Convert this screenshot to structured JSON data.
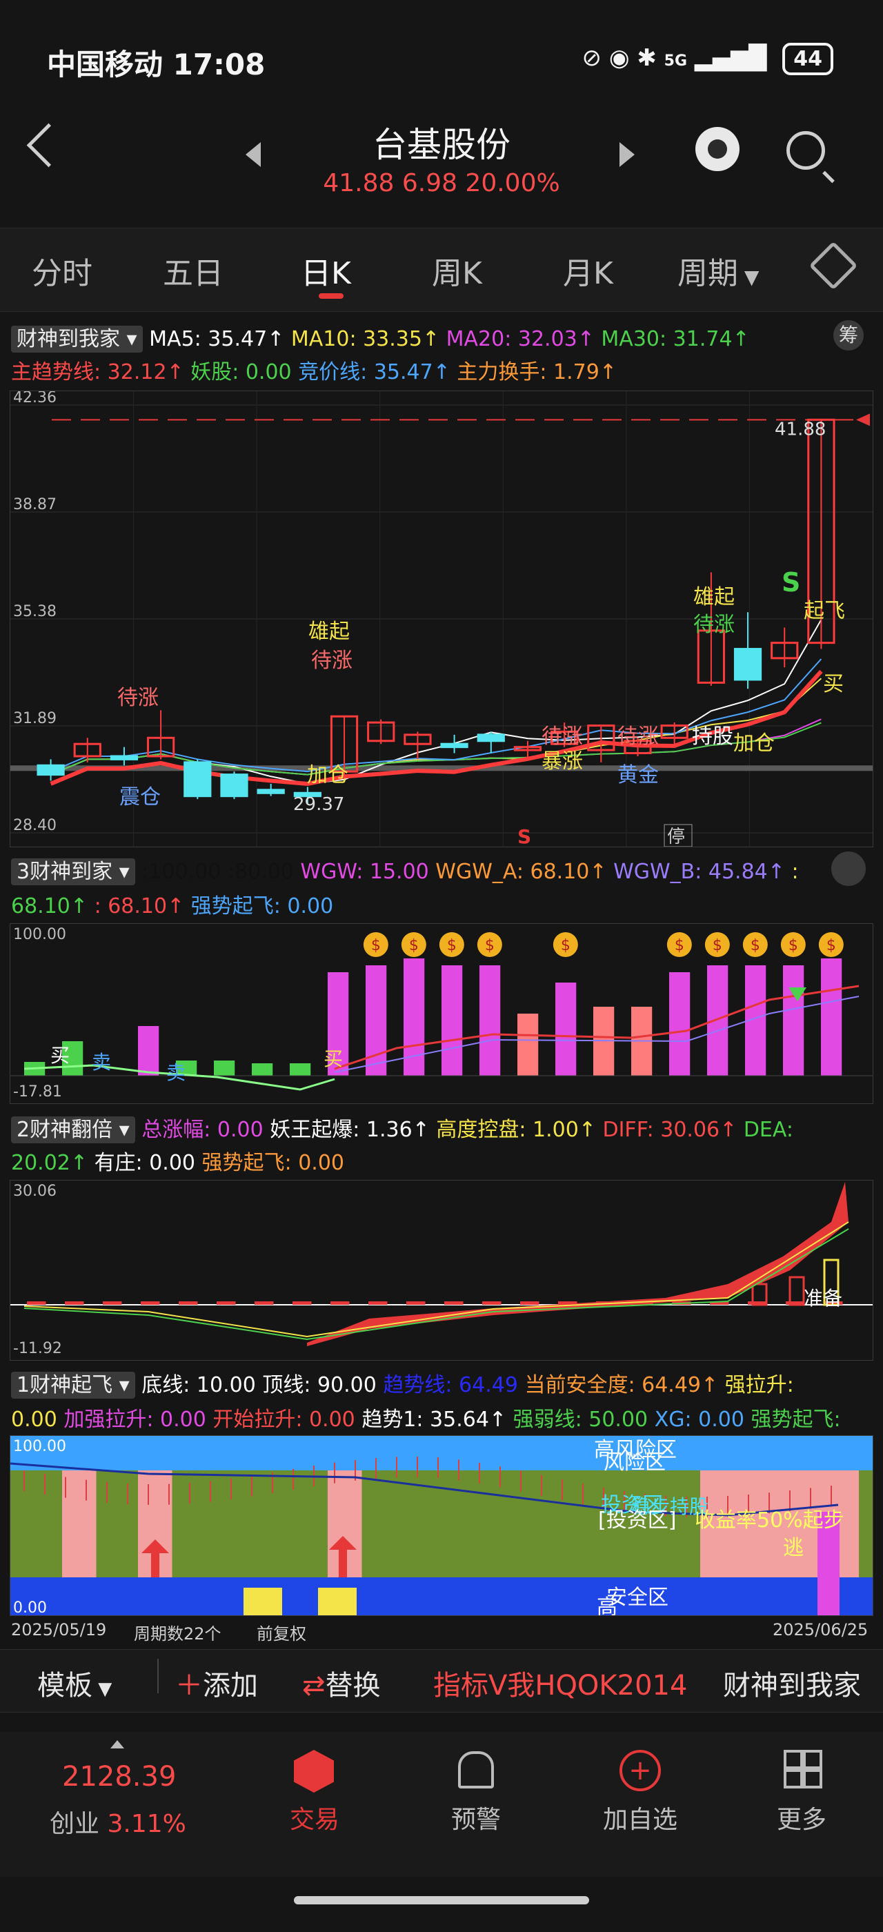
{
  "status": {
    "carrier_time": "中国移动 17:08",
    "network": "5G",
    "battery": "44"
  },
  "header": {
    "title": "台基股份",
    "quote": "41.88 6.98 20.00%"
  },
  "period_tabs": [
    {
      "label": "分时",
      "active": false
    },
    {
      "label": "五日",
      "active": false
    },
    {
      "label": "日K",
      "active": true
    },
    {
      "label": "周K",
      "active": false
    },
    {
      "label": "月K",
      "active": false
    },
    {
      "label": "周期",
      "active": false
    }
  ],
  "main_chart": {
    "indicator_name": "财神到我家",
    "chip_label": "筹",
    "ma_line": [
      {
        "text": "MA5: 35.47↑",
        "color": "#ffffff"
      },
      {
        "text": "MA10: 33.35↑",
        "color": "#f4e44a"
      },
      {
        "text": "MA20: 32.03↑",
        "color": "#e24be3"
      },
      {
        "text": "MA30: 31.74↑",
        "color": "#4cd14c"
      }
    ],
    "ind_line": [
      {
        "text": "主趋势线: 32.12↑",
        "color": "#ff4a4a"
      },
      {
        "text": "妖股: 0.00",
        "color": "#4cd14c"
      },
      {
        "text": "竞价线: 35.47↑",
        "color": "#4da6ff"
      },
      {
        "text": "主力换手: 1.79↑",
        "color": "#ff9a3a"
      }
    ],
    "y_labels": [
      "42.36",
      "38.87",
      "35.38",
      "31.89",
      "28.40"
    ],
    "high_label": "41.88",
    "low_label": "29.37",
    "annotations": {
      "a1": "待涨",
      "a2": "雄起",
      "a3": "待涨",
      "a4": "加仓",
      "a5": "震仓",
      "a6": "暴涨",
      "a7": "待涨",
      "a8": "待涨",
      "a9": "黄金",
      "a10": "持股",
      "a11": "加仓",
      "a12": "雄起",
      "a13": "待涨",
      "a14": "S",
      "a15": "起飞",
      "a16": "买",
      "a17": "S",
      "a18": "停"
    }
  },
  "chart_data": {
    "type": "candlestick",
    "series_ma": [
      "MA5",
      "MA10",
      "MA20",
      "MA30"
    ],
    "ylim": [
      28.4,
      42.36
    ],
    "x_start": "2025/05/19",
    "x_end": "2025/06/25",
    "candles": [
      {
        "o": 30.6,
        "c": 30.3,
        "h": 30.8,
        "l": 30.1
      },
      {
        "o": 30.9,
        "c": 31.3,
        "h": 31.5,
        "l": 30.7
      },
      {
        "o": 30.9,
        "c": 30.8,
        "h": 31.2,
        "l": 30.6
      },
      {
        "o": 30.9,
        "c": 31.5,
        "h": 32.4,
        "l": 30.8
      },
      {
        "o": 30.7,
        "c": 29.6,
        "h": 30.8,
        "l": 29.5
      },
      {
        "o": 30.3,
        "c": 29.6,
        "h": 30.4,
        "l": 29.5
      },
      {
        "o": 29.8,
        "c": 29.7,
        "h": 30.0,
        "l": 29.6
      },
      {
        "o": 29.7,
        "c": 29.6,
        "h": 29.9,
        "l": 29.37
      },
      {
        "o": 30.4,
        "c": 32.2,
        "h": 32.2,
        "l": 30.3
      },
      {
        "o": 31.4,
        "c": 32.0,
        "h": 32.1,
        "l": 31.3
      },
      {
        "o": 31.3,
        "c": 31.6,
        "h": 31.7,
        "l": 30.8
      },
      {
        "o": 31.3,
        "c": 31.2,
        "h": 31.6,
        "l": 31.0
      },
      {
        "o": 31.6,
        "c": 31.4,
        "h": 31.7,
        "l": 31.0
      },
      {
        "o": 31.1,
        "c": 31.2,
        "h": 31.4,
        "l": 30.8
      },
      {
        "o": 31.3,
        "c": 31.7,
        "h": 32.0,
        "l": 31.2
      },
      {
        "o": 31.1,
        "c": 31.9,
        "h": 31.9,
        "l": 30.7
      },
      {
        "o": 31.0,
        "c": 31.4,
        "h": 31.5,
        "l": 30.9
      },
      {
        "o": 31.5,
        "c": 31.9,
        "h": 32.0,
        "l": 31.2
      },
      {
        "o": 33.3,
        "c": 35.0,
        "h": 36.9,
        "l": 33.2
      },
      {
        "o": 34.4,
        "c": 33.4,
        "h": 35.6,
        "l": 33.1
      },
      {
        "o": 34.1,
        "c": 34.6,
        "h": 35.1,
        "l": 33.8
      },
      {
        "o": 34.6,
        "c": 41.88,
        "h": 41.88,
        "l": 34.4
      }
    ]
  },
  "panel2": {
    "name": "3财神到家",
    "head_line1": [
      {
        "text": ":100.00",
        "color": "#111111"
      },
      {
        "text": ":80.00",
        "color": "#111111"
      },
      {
        "text": "WGW: 15.00",
        "color": "#e24be3"
      },
      {
        "text": "WGW_A: 68.10↑",
        "color": "#ff9a3a"
      },
      {
        "text": "WGW_B: 45.84↑",
        "color": "#9a7dff"
      },
      {
        "text": ":",
        "color": "#f4e44a"
      }
    ],
    "head_line2": [
      {
        "text": "68.10↑",
        "color": "#4cd14c"
      },
      {
        "text": ": 68.10↑",
        "color": "#ff4a4a"
      },
      {
        "text": "强势起飞: 0.00",
        "color": "#4da6ff"
      }
    ],
    "y_top": "100.00",
    "y_bottom": "-17.81",
    "buy": "买",
    "sell": "卖",
    "sell2": "卖",
    "buy2": "买"
  },
  "panel3": {
    "name": "2财神翻倍",
    "head_line1": [
      {
        "text": "总涨幅: 0.00",
        "color": "#e24be3"
      },
      {
        "text": "妖王起爆: 1.36↑",
        "color": "#ffffff"
      },
      {
        "text": "高度控盘: 1.00↑",
        "color": "#f4e44a"
      },
      {
        "text": "DIFF: 30.06↑",
        "color": "#ff4a4a"
      },
      {
        "text": "DEA:",
        "color": "#4cd14c"
      }
    ],
    "head_line2": [
      {
        "text": "20.02↑",
        "color": "#4cd14c"
      },
      {
        "text": "有庄: 0.00",
        "color": "#ffffff"
      },
      {
        "text": "强势起飞: 0.00",
        "color": "#ff9a3a"
      }
    ],
    "y_top": "30.06",
    "y_bottom": "-11.92",
    "ready": "准备"
  },
  "panel4": {
    "name": "1财神起飞",
    "head_line1": [
      {
        "text": "底线: 10.00",
        "color": "#ffffff"
      },
      {
        "text": "顶线: 90.00",
        "color": "#ffffff"
      },
      {
        "text": "趋势线: 64.49",
        "color": "#2a2aff"
      },
      {
        "text": "当前安全度: 64.49↑",
        "color": "#ff9a3a"
      },
      {
        "text": "强拉升:",
        "color": "#f4e44a"
      }
    ],
    "head_line2": [
      {
        "text": "0.00",
        "color": "#f4e44a"
      },
      {
        "text": "加强拉升: 0.00",
        "color": "#e24be3"
      },
      {
        "text": "开始拉升: 0.00",
        "color": "#ff4a4a"
      },
      {
        "text": "趋势1: 35.64↑",
        "color": "#ffffff"
      },
      {
        "text": "强弱线: 50.00",
        "color": "#4cd14c"
      },
      {
        "text": "XG: 0.00",
        "color": "#4da6ff"
      },
      {
        "text": "强势起飞:",
        "color": "#4cd14c"
      }
    ],
    "y_top": "100.00",
    "y_bottom": "0.00",
    "zone_high": "高风险区",
    "zone_risk": "风险区",
    "zone_invest_a": "投资区",
    "zone_invest_b": "稳步持股",
    "zone_invest_c": "[投资区]",
    "profit_note": "收益率50%起步",
    "escape": "逃",
    "zone_safe": "安全区",
    "zone_high2": "高"
  },
  "footer_info": {
    "date_start": "2025/05/19",
    "cycles": "周期数22个",
    "adjust": "前复权",
    "date_end": "2025/06/25"
  },
  "toolbar": {
    "template": "模板",
    "add": "添加",
    "replace": "替换",
    "indicator": "指标V我HQOK2014",
    "source": "财神到我家"
  },
  "bottom_nav": {
    "index_value": "2128.39",
    "index_name": "创业",
    "index_change": "3.11%",
    "trade": "交易",
    "alert": "预警",
    "watchlist": "加自选",
    "more": "更多"
  }
}
